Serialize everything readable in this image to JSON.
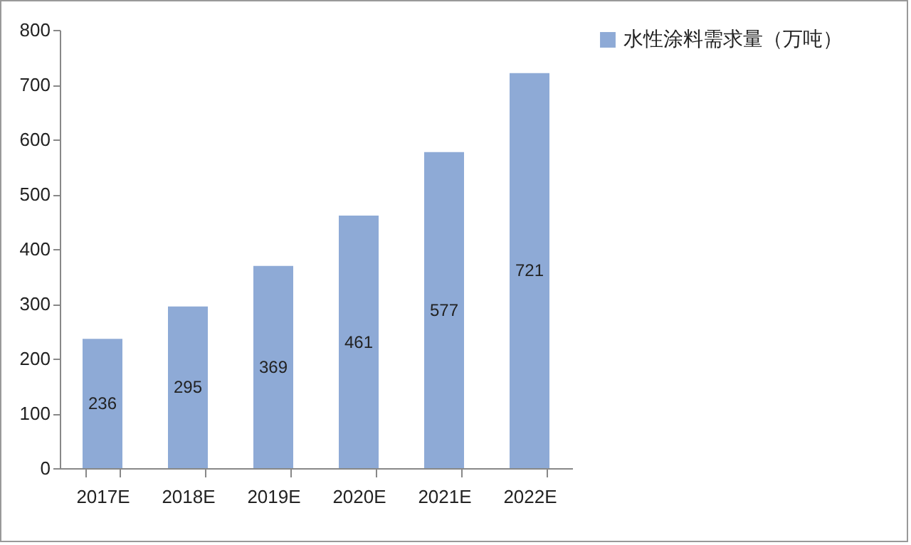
{
  "chart_data": {
    "type": "bar",
    "categories": [
      "2017E",
      "2018E",
      "2019E",
      "2020E",
      "2021E",
      "2022E"
    ],
    "series": [
      {
        "name": "水性涂料需求量（万吨）",
        "color": "#8eaad6",
        "values": [
          236,
          295,
          369,
          461,
          577,
          721
        ]
      }
    ],
    "ylim": [
      0,
      800
    ],
    "yticks": [
      0,
      100,
      200,
      300,
      400,
      500,
      600,
      700,
      800
    ],
    "grid": false,
    "legend": "right",
    "data_labels": true
  }
}
